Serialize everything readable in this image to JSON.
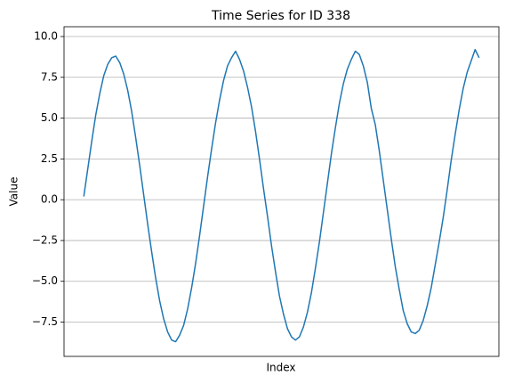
{
  "chart_data": {
    "type": "line",
    "title": "Time Series for ID 338",
    "xlabel": "Index",
    "ylabel": "Value",
    "series": [
      {
        "name": "ID 338",
        "color": "#1f77b4",
        "values": [
          0.2,
          1.9,
          3.6,
          5.2,
          6.5,
          7.6,
          8.3,
          8.7,
          8.8,
          8.4,
          7.7,
          6.7,
          5.4,
          3.8,
          2.1,
          0.3,
          -1.5,
          -3.2,
          -4.8,
          -6.2,
          -7.3,
          -8.1,
          -8.6,
          -8.7,
          -8.3,
          -7.7,
          -6.7,
          -5.4,
          -3.9,
          -2.2,
          -0.4,
          1.4,
          3.1,
          4.7,
          6.1,
          7.3,
          8.2,
          8.7,
          9.1,
          8.6,
          7.9,
          6.9,
          5.7,
          4.2,
          2.5,
          0.7,
          -1.0,
          -2.8,
          -4.4,
          -5.9,
          -7.0,
          -7.9,
          -8.4,
          -8.6,
          -8.4,
          -7.8,
          -6.9,
          -5.7,
          -4.2,
          -2.6,
          -0.8,
          1.0,
          2.8,
          4.4,
          5.9,
          7.1,
          8.0,
          8.6,
          9.1,
          8.9,
          8.2,
          7.2,
          5.6,
          4.6,
          3.0,
          1.2,
          -0.6,
          -2.4,
          -4.1,
          -5.5,
          -6.8,
          -7.6,
          -8.1,
          -8.2,
          -8.0,
          -7.4,
          -6.5,
          -5.4,
          -4.0,
          -2.6,
          -1.1,
          0.6,
          2.4,
          4.0,
          5.5,
          6.8,
          7.8,
          8.5,
          9.2,
          8.7
        ]
      }
    ],
    "ylim": [
      -9.6,
      10.6
    ],
    "yticks": [
      {
        "value": -7.5,
        "label": "−7.5"
      },
      {
        "value": -5,
        "label": "−5.0"
      },
      {
        "value": -2.5,
        "label": "−2.5"
      },
      {
        "value": 0,
        "label": "0.0"
      },
      {
        "value": 2.5,
        "label": "2.5"
      },
      {
        "value": 5,
        "label": "5.0"
      },
      {
        "value": 7.5,
        "label": "7.5"
      },
      {
        "value": 10,
        "label": "10.0"
      }
    ],
    "grid": "y"
  }
}
